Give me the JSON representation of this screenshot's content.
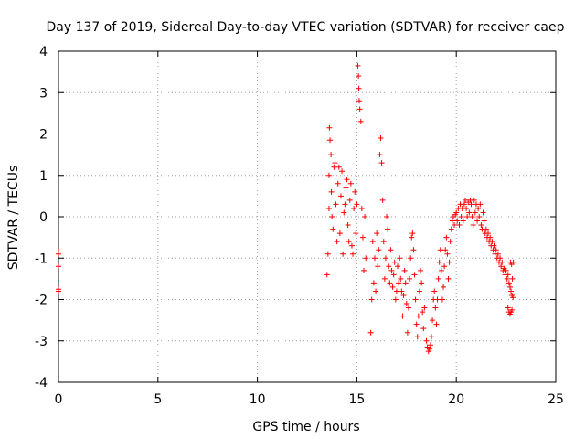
{
  "chart_data": {
    "type": "scatter",
    "title": "Day 137 of 2019, Sidereal Day-to-day VTEC variation (SDTVAR) for receiver caep",
    "xlabel": "GPS time / hours",
    "ylabel": "SDTVAR / TECUs",
    "xlim": [
      0,
      25
    ],
    "ylim": [
      -4,
      4
    ],
    "x_ticks": [
      0,
      5,
      10,
      15,
      20,
      25
    ],
    "y_ticks": [
      -4,
      -3,
      -2,
      -1,
      0,
      1,
      2,
      3,
      4
    ],
    "grid": true,
    "marker": "+",
    "series": [
      {
        "name": "SDTVAR",
        "color": "#ff0000",
        "points": [
          [
            0.0,
            -0.85
          ],
          [
            0.0,
            -0.9
          ],
          [
            0.0,
            -1.2
          ],
          [
            0.0,
            -1.75
          ],
          [
            0.0,
            -1.8
          ],
          [
            13.5,
            -1.4
          ],
          [
            13.55,
            -0.9
          ],
          [
            13.6,
            0.2
          ],
          [
            13.6,
            1.0
          ],
          [
            13.62,
            2.15
          ],
          [
            13.65,
            1.85
          ],
          [
            13.7,
            1.5
          ],
          [
            13.72,
            0.6
          ],
          [
            13.75,
            0.0
          ],
          [
            13.8,
            -0.3
          ],
          [
            13.85,
            1.2
          ],
          [
            13.9,
            1.3
          ],
          [
            13.95,
            0.3
          ],
          [
            14.0,
            -0.6
          ],
          [
            14.05,
            0.8
          ],
          [
            14.1,
            1.2
          ],
          [
            14.15,
            -0.4
          ],
          [
            14.2,
            0.5
          ],
          [
            14.25,
            1.1
          ],
          [
            14.3,
            -0.9
          ],
          [
            14.35,
            0.1
          ],
          [
            14.4,
            0.3
          ],
          [
            14.45,
            0.7
          ],
          [
            14.5,
            0.9
          ],
          [
            14.55,
            -0.2
          ],
          [
            14.6,
            -0.6
          ],
          [
            14.65,
            0.4
          ],
          [
            14.7,
            0.8
          ],
          [
            14.75,
            -0.7
          ],
          [
            14.8,
            -0.9
          ],
          [
            14.85,
            0.2
          ],
          [
            14.9,
            0.6
          ],
          [
            14.95,
            -0.4
          ],
          [
            15.0,
            0.3
          ],
          [
            15.05,
            3.65
          ],
          [
            15.08,
            3.4
          ],
          [
            15.1,
            3.1
          ],
          [
            15.12,
            2.8
          ],
          [
            15.15,
            2.6
          ],
          [
            15.2,
            2.3
          ],
          [
            15.25,
            0.2
          ],
          [
            15.3,
            -0.5
          ],
          [
            15.35,
            -1.3
          ],
          [
            15.4,
            0.0
          ],
          [
            15.45,
            -1.0
          ],
          [
            15.7,
            -2.8
          ],
          [
            15.75,
            -2.0
          ],
          [
            15.8,
            -0.6
          ],
          [
            15.85,
            -1.6
          ],
          [
            15.9,
            -1.0
          ],
          [
            15.95,
            -1.8
          ],
          [
            16.0,
            -0.4
          ],
          [
            16.05,
            -1.2
          ],
          [
            16.1,
            -0.8
          ],
          [
            16.15,
            1.5
          ],
          [
            16.2,
            1.9
          ],
          [
            16.25,
            1.3
          ],
          [
            16.3,
            0.4
          ],
          [
            16.35,
            -0.6
          ],
          [
            16.4,
            -1.5
          ],
          [
            16.45,
            -1.0
          ],
          [
            16.5,
            0.0
          ],
          [
            16.55,
            -0.3
          ],
          [
            16.6,
            -1.2
          ],
          [
            16.65,
            -1.6
          ],
          [
            16.7,
            -0.8
          ],
          [
            16.75,
            -1.3
          ],
          [
            16.8,
            -1.7
          ],
          [
            16.85,
            -1.4
          ],
          [
            16.9,
            -1.1
          ],
          [
            16.95,
            -2.0
          ],
          [
            17.0,
            -1.8
          ],
          [
            17.05,
            -1.2
          ],
          [
            17.1,
            -1.6
          ],
          [
            17.15,
            -1.0
          ],
          [
            17.2,
            -1.5
          ],
          [
            17.25,
            -1.8
          ],
          [
            17.3,
            -2.4
          ],
          [
            17.35,
            -1.9
          ],
          [
            17.4,
            -1.3
          ],
          [
            17.45,
            -1.6
          ],
          [
            17.5,
            -2.1
          ],
          [
            17.55,
            -2.8
          ],
          [
            17.6,
            -2.2
          ],
          [
            17.65,
            -1.5
          ],
          [
            17.7,
            -1.0
          ],
          [
            17.75,
            -0.5
          ],
          [
            17.8,
            -0.4
          ],
          [
            17.85,
            -0.8
          ],
          [
            17.9,
            -1.4
          ],
          [
            17.95,
            -2.0
          ],
          [
            18.0,
            -2.6
          ],
          [
            18.05,
            -2.9
          ],
          [
            18.1,
            -2.4
          ],
          [
            18.15,
            -1.8
          ],
          [
            18.2,
            -1.3
          ],
          [
            18.25,
            -1.6
          ],
          [
            18.3,
            -2.3
          ],
          [
            18.35,
            -2.7
          ],
          [
            18.4,
            -2.2
          ],
          [
            18.5,
            -3.0
          ],
          [
            18.55,
            -3.15
          ],
          [
            18.6,
            -3.25
          ],
          [
            18.65,
            -3.2
          ],
          [
            18.7,
            -3.1
          ],
          [
            18.75,
            -2.9
          ],
          [
            18.8,
            -2.5
          ],
          [
            18.85,
            -2.0
          ],
          [
            18.9,
            -1.8
          ],
          [
            18.95,
            -2.2
          ],
          [
            19.0,
            -2.6
          ],
          [
            19.05,
            -2.0
          ],
          [
            19.1,
            -1.5
          ],
          [
            19.15,
            -1.1
          ],
          [
            19.2,
            -0.8
          ],
          [
            19.25,
            -1.3
          ],
          [
            19.3,
            -2.0
          ],
          [
            19.35,
            -1.7
          ],
          [
            19.4,
            -1.2
          ],
          [
            19.45,
            -0.8
          ],
          [
            19.5,
            -0.5
          ],
          [
            19.55,
            -0.9
          ],
          [
            19.6,
            -1.5
          ],
          [
            19.65,
            -1.1
          ],
          [
            19.7,
            -0.6
          ],
          [
            19.75,
            -0.3
          ],
          [
            19.8,
            -0.1
          ],
          [
            19.85,
            0.0
          ],
          [
            19.9,
            -0.2
          ],
          [
            19.95,
            0.05
          ],
          [
            20.0,
            0.1
          ],
          [
            20.05,
            -0.1
          ],
          [
            20.1,
            0.2
          ],
          [
            20.15,
            -0.2
          ],
          [
            20.2,
            0.3
          ],
          [
            20.25,
            0.0
          ],
          [
            20.3,
            0.2
          ],
          [
            20.35,
            -0.1
          ],
          [
            20.4,
            0.3
          ],
          [
            20.45,
            0.4
          ],
          [
            20.5,
            0.2
          ],
          [
            20.55,
            0.0
          ],
          [
            20.6,
            0.35
          ],
          [
            20.65,
            0.1
          ],
          [
            20.7,
            0.4
          ],
          [
            20.75,
            0.3
          ],
          [
            20.8,
            0.0
          ],
          [
            20.85,
            -0.2
          ],
          [
            20.9,
            0.4
          ],
          [
            20.95,
            0.1
          ],
          [
            21.0,
            0.3
          ],
          [
            21.05,
            -0.1
          ],
          [
            21.1,
            0.2
          ],
          [
            21.15,
            0.0
          ],
          [
            21.2,
            0.3
          ],
          [
            21.25,
            -0.2
          ],
          [
            21.3,
            -0.3
          ],
          [
            21.35,
            0.1
          ],
          [
            21.4,
            -0.1
          ],
          [
            21.45,
            -0.4
          ],
          [
            21.5,
            -0.3
          ],
          [
            21.55,
            -0.5
          ],
          [
            21.6,
            -0.4
          ],
          [
            21.65,
            -0.6
          ],
          [
            21.7,
            -0.5
          ],
          [
            21.75,
            -0.7
          ],
          [
            21.8,
            -0.6
          ],
          [
            21.85,
            -0.8
          ],
          [
            21.9,
            -0.7
          ],
          [
            21.95,
            -0.9
          ],
          [
            22.0,
            -0.8
          ],
          [
            22.05,
            -1.0
          ],
          [
            22.1,
            -0.9
          ],
          [
            22.15,
            -1.1
          ],
          [
            22.2,
            -1.0
          ],
          [
            22.25,
            -1.2
          ],
          [
            22.3,
            -1.1
          ],
          [
            22.35,
            -1.3
          ],
          [
            22.4,
            -1.25
          ],
          [
            22.45,
            -1.4
          ],
          [
            22.5,
            -1.3
          ],
          [
            22.55,
            -1.5
          ],
          [
            22.6,
            -1.4
          ],
          [
            22.65,
            -1.6
          ],
          [
            22.7,
            -1.7
          ],
          [
            22.72,
            -1.1
          ],
          [
            22.75,
            -1.8
          ],
          [
            22.78,
            -1.15
          ],
          [
            22.8,
            -1.9
          ],
          [
            22.82,
            -1.5
          ],
          [
            22.85,
            -1.95
          ],
          [
            22.87,
            -1.1
          ],
          [
            22.6,
            -2.2
          ],
          [
            22.65,
            -2.3
          ],
          [
            22.7,
            -2.35
          ],
          [
            22.75,
            -2.3
          ],
          [
            22.8,
            -2.25
          ]
        ]
      }
    ]
  }
}
